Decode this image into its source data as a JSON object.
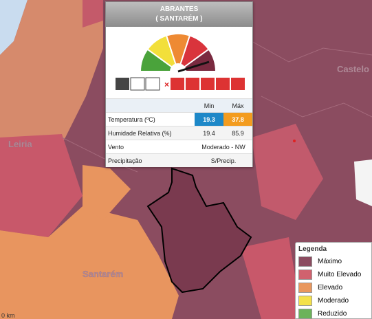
{
  "map_labels": {
    "leiria": "Leiria",
    "santarem": "Santarém",
    "castelo": "Castelo",
    "scale": "0 km"
  },
  "popup": {
    "title": "ABRANTES",
    "subtitle": "( SANTARÉM )",
    "table": {
      "header": [
        "Min",
        "Máx"
      ],
      "rows": [
        [
          "Temperatura (ºC)",
          19.3,
          37.8
        ],
        [
          "Humidade Relativa (%)",
          19.4,
          85.9
        ],
        [
          "Vento",
          "Moderado - NW"
        ],
        [
          "Precipitação",
          "S/Precip."
        ]
      ]
    }
  },
  "legend": {
    "title": "Legenda",
    "items": [
      {
        "label": "Máximo",
        "color": "#8b4c60"
      },
      {
        "label": "Muito Elevado",
        "color": "#d0626e"
      },
      {
        "label": "Elevado",
        "color": "#e9975d"
      },
      {
        "label": "Moderado",
        "color": "#f4e14a"
      },
      {
        "label": "Reduzido",
        "color": "#6cb35a"
      }
    ]
  }
}
